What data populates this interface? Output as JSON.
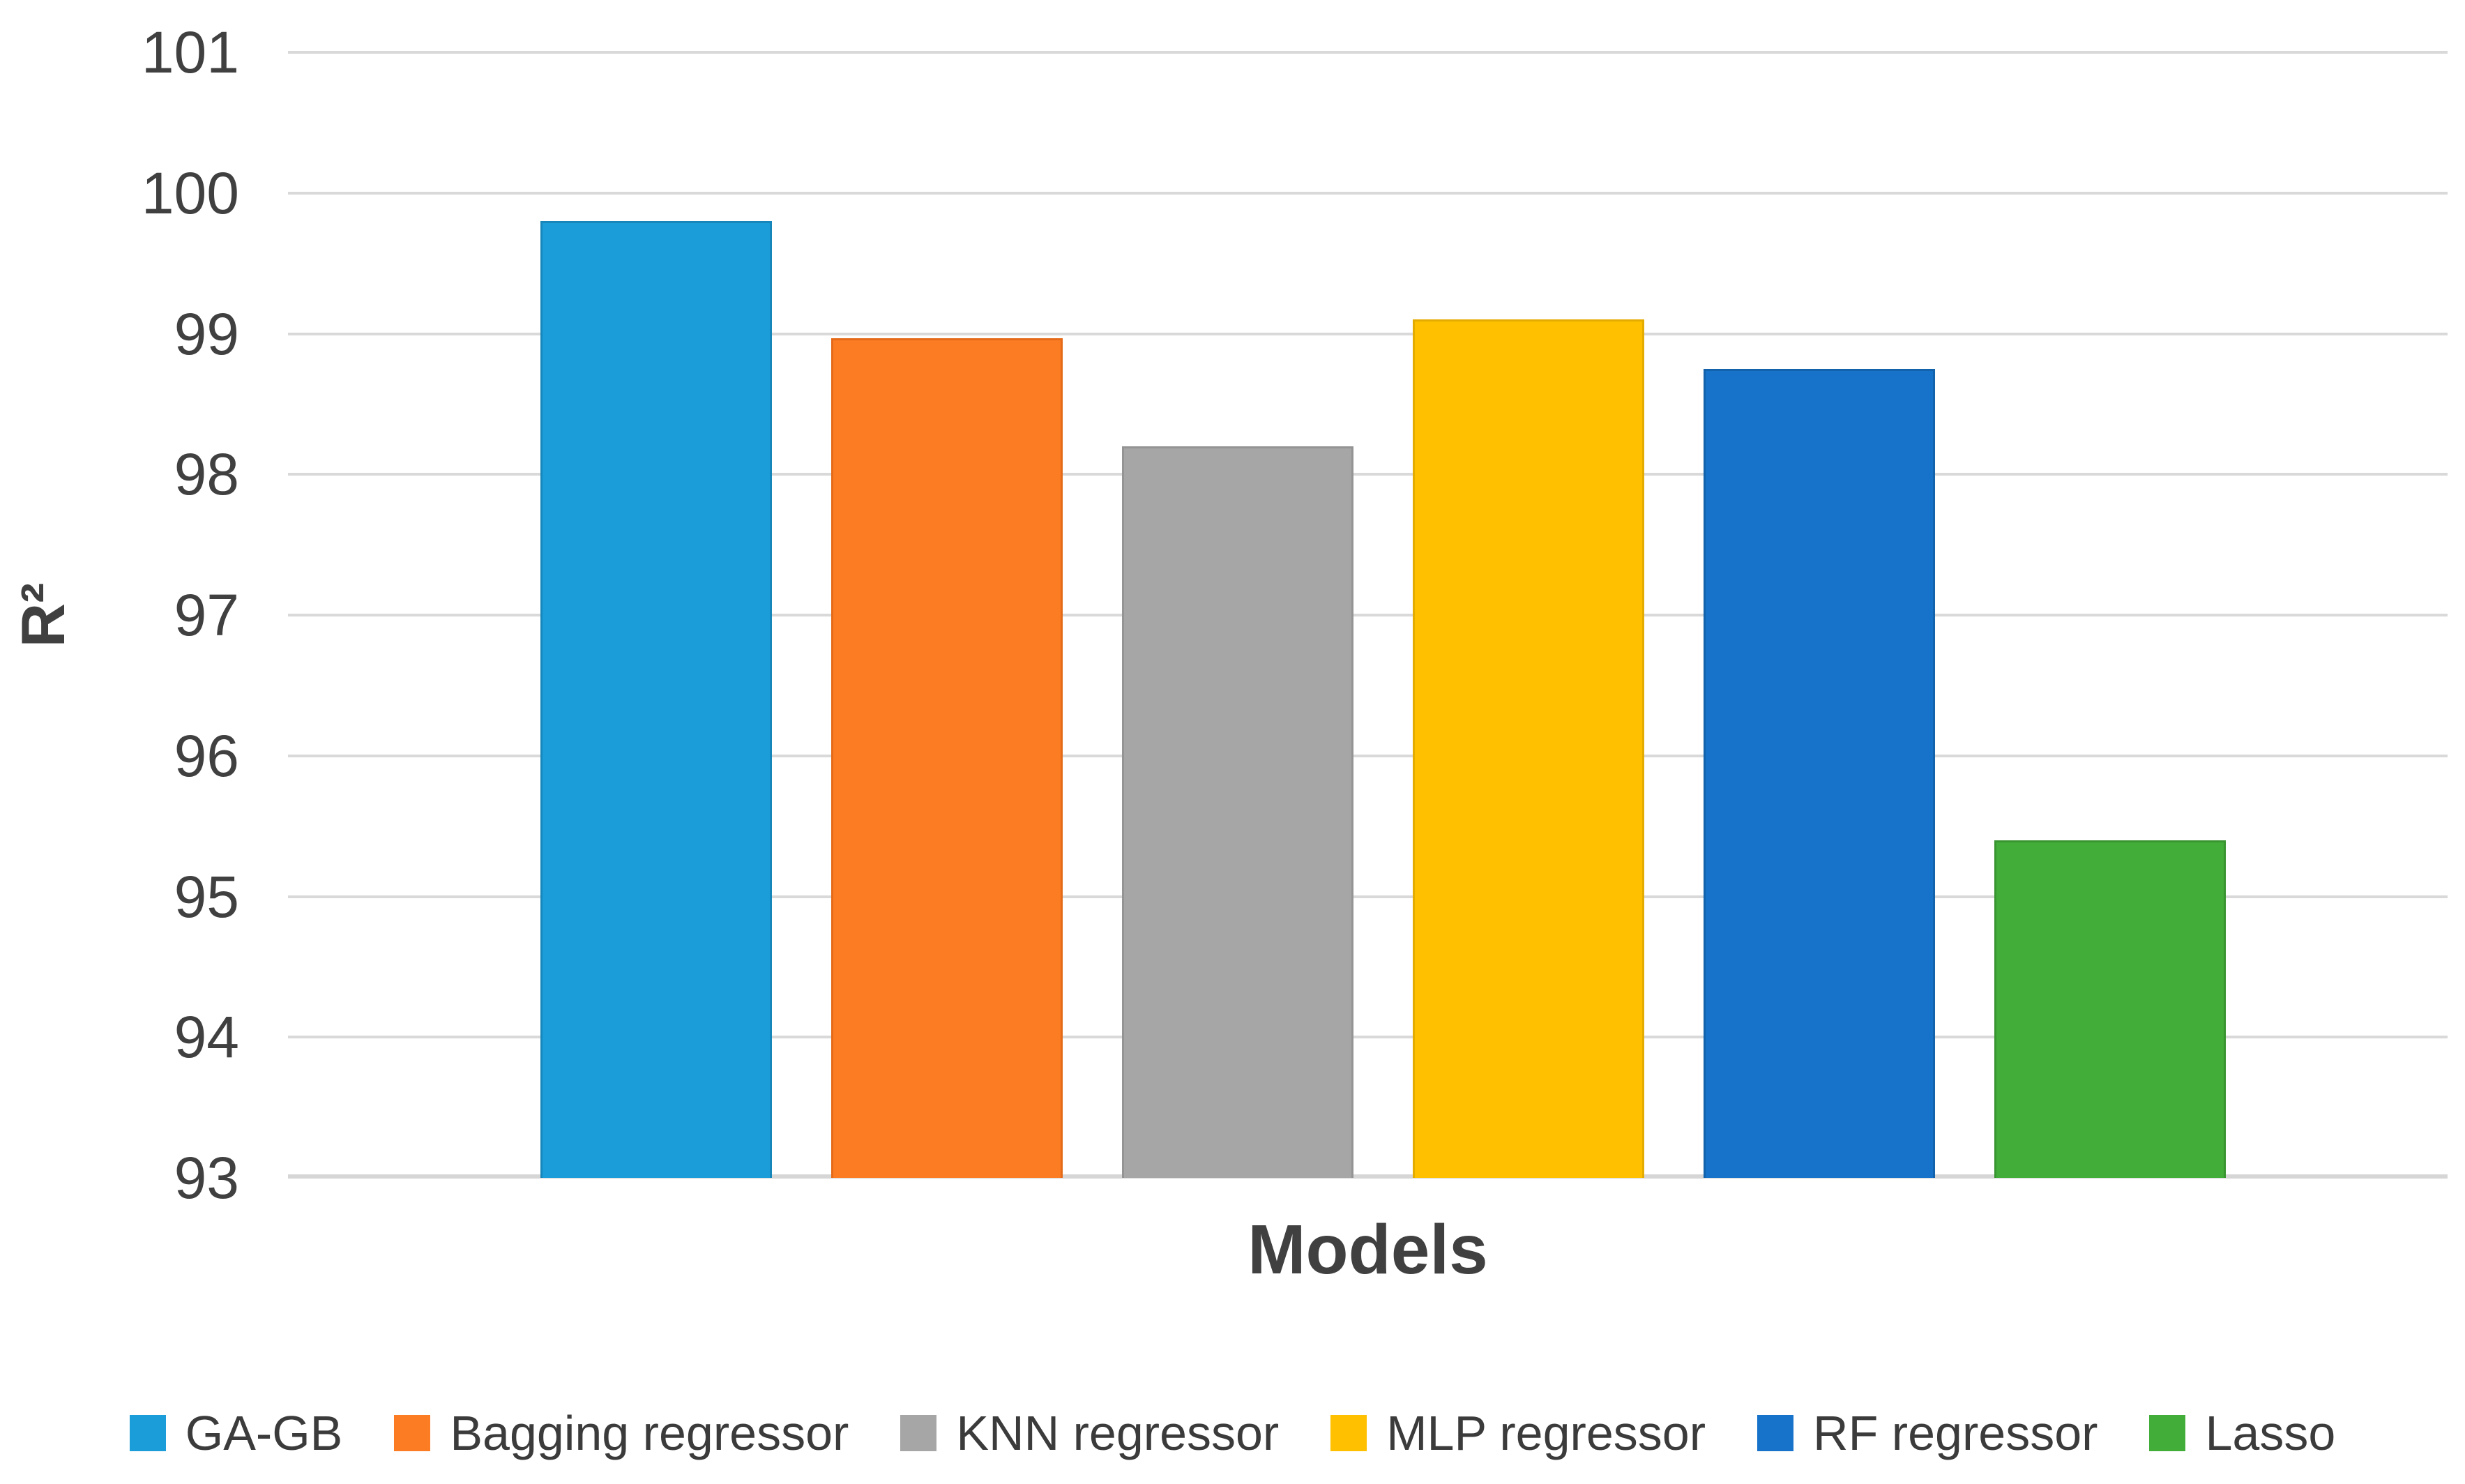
{
  "chart_data": {
    "type": "bar",
    "title": "",
    "xlabel": "Models",
    "ylabel": "R²",
    "ylim": [
      93,
      101
    ],
    "yticks": [
      93,
      94,
      95,
      96,
      97,
      98,
      99,
      100,
      101
    ],
    "categories": [
      "GA-GB",
      "Bagging regressor",
      "KNN regressor",
      "MLP regressor",
      "RF regressor",
      "Lasso"
    ],
    "values": [
      99.8,
      98.97,
      98.2,
      99.1,
      98.75,
      95.4
    ],
    "series_colors": [
      "#1B9DD9",
      "#FC7C24",
      "#A6A6A6",
      "#FFC000",
      "#1673C9",
      "#43AD3A"
    ],
    "series_edge_colors": [
      "#1787BB",
      "#E56B1A",
      "#949494",
      "#E5AC00",
      "#1262AC",
      "#38952F"
    ],
    "grid": true,
    "gridline_color": "#D9D9D9",
    "axis_text_color": "#404040",
    "legend_text_color": "#3B3B3B",
    "legend_position": "bottom"
  }
}
